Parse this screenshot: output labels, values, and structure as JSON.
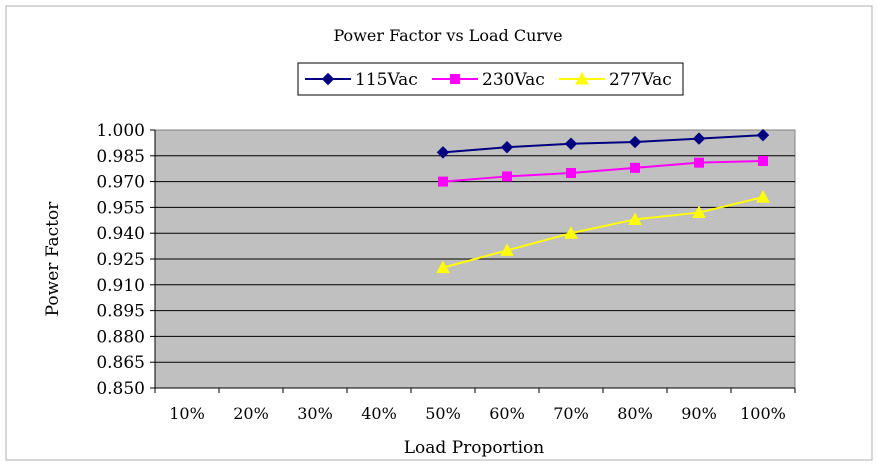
{
  "chart_data": {
    "type": "line",
    "title": "Power Factor vs Load Curve",
    "xlabel": "Load Proportion",
    "ylabel": "Power Factor",
    "categories": [
      "10%",
      "20%",
      "30%",
      "40%",
      "50%",
      "60%",
      "70%",
      "80%",
      "90%",
      "100%"
    ],
    "y_tick_labels": [
      "1.000",
      "0.985",
      "0.970",
      "0.955",
      "0.940",
      "0.925",
      "0.910",
      "0.895",
      "0.880",
      "0.865",
      "0.850"
    ],
    "ylim": [
      0.85,
      1.0
    ],
    "y_step": 0.015,
    "grid": true,
    "legend_position": "top",
    "plot_background": "#c0c0c0",
    "series": [
      {
        "name": "115Vac",
        "color": "#000080",
        "marker": "diamond",
        "values": [
          null,
          null,
          null,
          null,
          0.987,
          0.99,
          0.992,
          0.993,
          0.995,
          0.997
        ]
      },
      {
        "name": "230Vac",
        "color": "#ff00ff",
        "marker": "square",
        "values": [
          null,
          null,
          null,
          null,
          0.97,
          0.973,
          0.975,
          0.978,
          0.981,
          0.982
        ]
      },
      {
        "name": "277Vac",
        "color": "#ffff00",
        "marker": "triangle",
        "values": [
          null,
          null,
          null,
          null,
          0.92,
          0.93,
          0.94,
          0.948,
          0.952,
          0.961
        ]
      }
    ]
  }
}
